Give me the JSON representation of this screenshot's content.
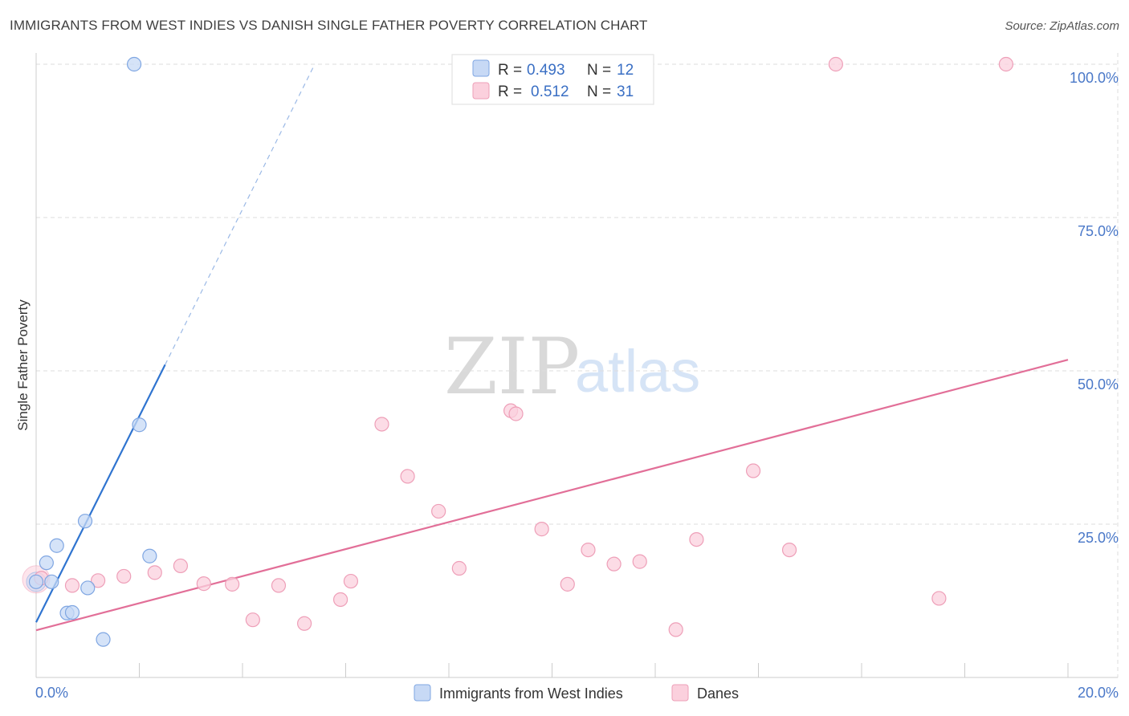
{
  "title": "IMMIGRANTS FROM WEST INDIES VS DANISH SINGLE FATHER POVERTY CORRELATION CHART",
  "source": "Source: ZipAtlas.com",
  "watermark": {
    "zip": "ZIP",
    "atlas": "atlas"
  },
  "colors": {
    "blue_fill": "#c7d9f5",
    "blue_stroke": "#7fa6e2",
    "blue_line": "#2f74d0",
    "pink_fill": "#fbd0dd",
    "pink_stroke": "#ee9fb8",
    "pink_line": "#e26f98",
    "grid": "#dddddd",
    "tick_text": "#4a78c8"
  },
  "legend": {
    "rows": [
      {
        "r_label": "R =",
        "r_value": "0.493",
        "n_label": "N =",
        "n_value": "12",
        "series": "blue"
      },
      {
        "r_label": "R =",
        "r_value": "0.512",
        "n_label": "N =",
        "n_value": "31",
        "series": "pink"
      }
    ]
  },
  "chart_data": {
    "type": "scatter",
    "title": "IMMIGRANTS FROM WEST INDIES VS DANISH SINGLE FATHER POVERTY CORRELATION CHART",
    "xlabel": "",
    "ylabel": "Single Father Poverty",
    "xlim": [
      0,
      20
    ],
    "ylim": [
      0,
      100
    ],
    "x_tick_labels": [
      "0.0%",
      "20.0%"
    ],
    "y_tick_labels": [
      "25.0%",
      "50.0%",
      "75.0%",
      "100.0%"
    ],
    "y_ticks": [
      25,
      50,
      75,
      100
    ],
    "grid": true,
    "legend_position": "top-center",
    "series": [
      {
        "name": "Immigrants from West Indies",
        "color": "blue",
        "points": [
          {
            "x": 1.9,
            "y": 100
          },
          {
            "x": 2.0,
            "y": 41.2
          },
          {
            "x": 0.95,
            "y": 25.5
          },
          {
            "x": 0.4,
            "y": 21.5
          },
          {
            "x": 2.2,
            "y": 19.8
          },
          {
            "x": 0.2,
            "y": 18.7
          },
          {
            "x": 0.3,
            "y": 15.6
          },
          {
            "x": 0.0,
            "y": 15.6
          },
          {
            "x": 1.0,
            "y": 14.6
          },
          {
            "x": 0.6,
            "y": 10.5
          },
          {
            "x": 0.7,
            "y": 10.6
          },
          {
            "x": 1.3,
            "y": 6.2
          }
        ],
        "trendline": {
          "x_start": 0.0,
          "y_start": 9.0,
          "x_solid_end": 2.5,
          "y_solid_end": 51.0,
          "x_dashed_end": 5.4,
          "y_dashed_end": 100
        }
      },
      {
        "name": "Danes",
        "color": "pink",
        "points": [
          {
            "x": 15.5,
            "y": 100
          },
          {
            "x": 18.8,
            "y": 100
          },
          {
            "x": 9.2,
            "y": 43.5
          },
          {
            "x": 9.3,
            "y": 43.0
          },
          {
            "x": 6.7,
            "y": 41.3
          },
          {
            "x": 13.9,
            "y": 33.7
          },
          {
            "x": 7.2,
            "y": 32.8
          },
          {
            "x": 7.8,
            "y": 27.1
          },
          {
            "x": 9.8,
            "y": 24.2
          },
          {
            "x": 12.8,
            "y": 22.5
          },
          {
            "x": 10.7,
            "y": 20.8
          },
          {
            "x": 14.6,
            "y": 20.8
          },
          {
            "x": 11.7,
            "y": 18.9
          },
          {
            "x": 11.2,
            "y": 18.5
          },
          {
            "x": 2.8,
            "y": 18.2
          },
          {
            "x": 8.2,
            "y": 17.8
          },
          {
            "x": 2.3,
            "y": 17.1
          },
          {
            "x": 1.7,
            "y": 16.5
          },
          {
            "x": 0.1,
            "y": 16.2
          },
          {
            "x": 1.2,
            "y": 15.8
          },
          {
            "x": 6.1,
            "y": 15.7
          },
          {
            "x": 3.25,
            "y": 15.3
          },
          {
            "x": 3.8,
            "y": 15.2
          },
          {
            "x": 0.7,
            "y": 15.0
          },
          {
            "x": 4.7,
            "y": 15.0
          },
          {
            "x": 10.3,
            "y": 15.2
          },
          {
            "x": 5.9,
            "y": 12.7
          },
          {
            "x": 17.5,
            "y": 12.9
          },
          {
            "x": 4.2,
            "y": 9.4
          },
          {
            "x": 5.2,
            "y": 8.8
          },
          {
            "x": 12.4,
            "y": 7.8
          }
        ],
        "trendline": {
          "x_start": 0.0,
          "y_start": 7.7,
          "x_end": 20.0,
          "y_end": 51.8
        }
      }
    ]
  },
  "bottom_legend": [
    {
      "label": "Immigrants from West Indies",
      "series": "blue"
    },
    {
      "label": "Danes",
      "series": "pink"
    }
  ]
}
